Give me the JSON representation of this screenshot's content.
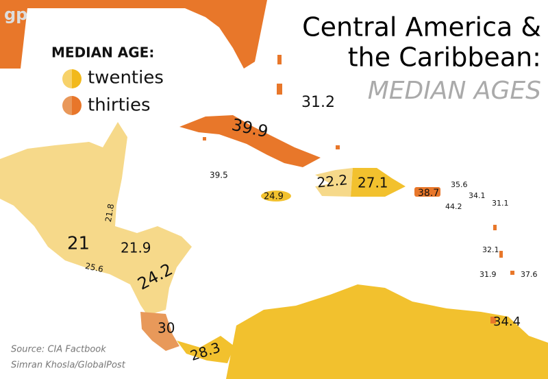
{
  "logo": "gp",
  "title": [
    "Central America &",
    "the Caribbean:"
  ],
  "subtitle": "MEDIAN AGES",
  "legend": {
    "title": "MEDIAN AGE:",
    "items": [
      "twenties",
      "thirties"
    ]
  },
  "labels": [
    31.2,
    39.9,
    39.5,
    24.9,
    22.2,
    27.1,
    38.7,
    35.6,
    34.1,
    44.2,
    31.1,
    32.1,
    31.9,
    37.6,
    34.4,
    21.8,
    21,
    21.9,
    25.6,
    24.2,
    30,
    28.3
  ],
  "source": [
    "Source: CIA Factbook",
    "Simran Khosla/GlobalPost"
  ]
}
